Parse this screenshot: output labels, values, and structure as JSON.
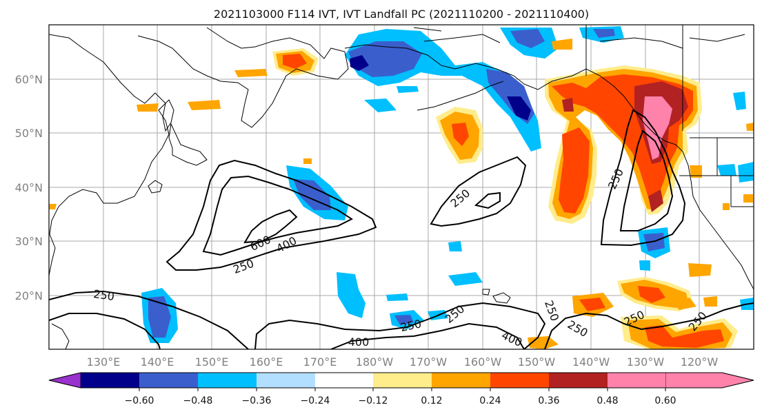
{
  "title": "2021103000 F114 IVT, IVT Landfall PC (2021110200 - 2021110400)",
  "axes": {
    "lat_labels": [
      "60°N",
      "50°N",
      "40°N",
      "30°N",
      "20°N"
    ],
    "lon_labels": [
      "130°E",
      "140°E",
      "150°E",
      "160°E",
      "170°E",
      "180°W",
      "170°W",
      "160°W",
      "150°W",
      "140°W",
      "130°W",
      "120°W"
    ]
  },
  "colorbar": {
    "tick_labels": [
      "−0.60",
      "−0.48",
      "−0.36",
      "−0.24",
      "−0.12",
      "0.12",
      "0.24",
      "0.36",
      "0.48",
      "0.60"
    ],
    "colors": [
      "#9a32cd",
      "#00008b",
      "#3a5fcd",
      "#00bfff",
      "#b2dfff",
      "#ffffff",
      "#ffec8b",
      "#ffa500",
      "#ff4500",
      "#b22222",
      "#ff82ab"
    ],
    "extend": "both"
  },
  "contour_labels": [
    {
      "id": "c600",
      "text": "600"
    },
    {
      "id": "c400a",
      "text": "400"
    },
    {
      "id": "c250a",
      "text": "250"
    },
    {
      "id": "c250b",
      "text": "250"
    },
    {
      "id": "c250c",
      "text": "250"
    },
    {
      "id": "c250d",
      "text": "250"
    },
    {
      "id": "c250e",
      "text": "250"
    },
    {
      "id": "c250f",
      "text": "250"
    },
    {
      "id": "c400b",
      "text": "400"
    },
    {
      "id": "c400c",
      "text": "400"
    },
    {
      "id": "c250g",
      "text": "250"
    },
    {
      "id": "c250h",
      "text": "250"
    },
    {
      "id": "c250i",
      "text": "250"
    },
    {
      "id": "c250j",
      "text": "250"
    }
  ],
  "map": {
    "lat_range": [
      10,
      70
    ],
    "lon_range_east": [
      120,
      250
    ],
    "grid": true,
    "fields": [
      "IVT contours (250, 400, 600)",
      "IVT Landfall PC shading"
    ]
  }
}
